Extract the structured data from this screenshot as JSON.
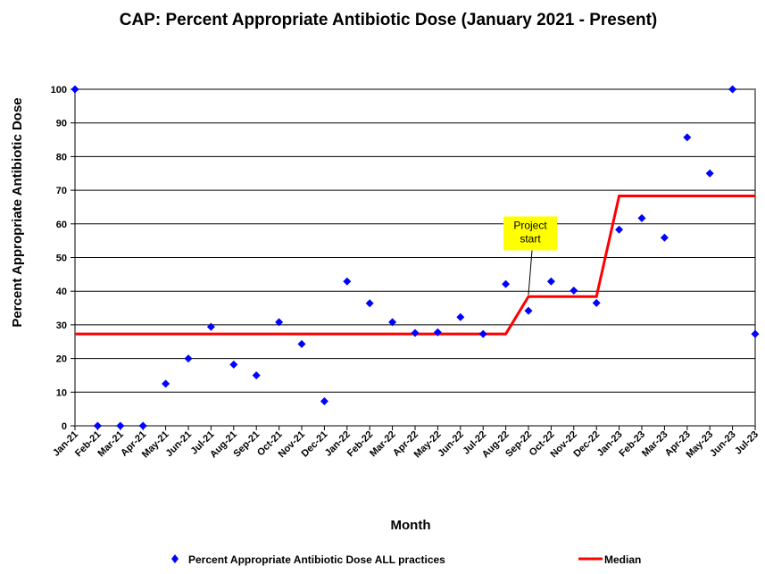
{
  "chart_data": {
    "type": "scatter",
    "title": "CAP: Percent Appropriate Antibiotic Dose (January 2021 - Present)",
    "xlabel": "Month",
    "ylabel": "Percent Appropriate Antibiotic Dose",
    "ylim": [
      0,
      100
    ],
    "yticks": [
      0,
      10,
      20,
      30,
      40,
      50,
      60,
      70,
      80,
      90,
      100
    ],
    "grid": true,
    "legend_position": "bottom",
    "categories": [
      "Jan-21",
      "Feb-21",
      "Mar-21",
      "Apr-21",
      "May-21",
      "Jun-21",
      "Jul-21",
      "Aug-21",
      "Sep-21",
      "Oct-21",
      "Nov-21",
      "Dec-21",
      "Jan-22",
      "Feb-22",
      "Mar-22",
      "Apr-22",
      "May-22",
      "Jun-22",
      "Jul-22",
      "Aug-22",
      "Sep-22",
      "Oct-22",
      "Nov-22",
      "Dec-22",
      "Jan-23",
      "Feb-23",
      "Mar-23",
      "Apr-23",
      "May-23",
      "Jun-23",
      "Jul-23"
    ],
    "series": [
      {
        "name": "Percent Appropriate Antibiotic Dose ALL practices",
        "kind": "scatter",
        "color": "#0000FF",
        "values": [
          100,
          0,
          0,
          0,
          12.5,
          20,
          29.4,
          18.2,
          15,
          30.8,
          24.3,
          7.3,
          42.9,
          36.4,
          30.8,
          27.6,
          27.8,
          32.3,
          27.3,
          42.1,
          34.2,
          42.9,
          40.2,
          36.5,
          58.3,
          61.7,
          55.9,
          85.7,
          75,
          100,
          27.3
        ]
      },
      {
        "name": "Median",
        "kind": "step-line",
        "color": "#FF0000",
        "segments": [
          {
            "from": "Jan-21",
            "to": "Aug-22",
            "value": 27.3
          },
          {
            "from": "Sep-22",
            "to": "Dec-22",
            "value": 38.4
          },
          {
            "from": "Jan-23",
            "to": "Jul-23",
            "value": 68.3
          }
        ]
      }
    ],
    "annotations": [
      {
        "text_lines": [
          "Project",
          "start"
        ],
        "category": "Sep-22",
        "background": "#FFFF00"
      }
    ]
  }
}
